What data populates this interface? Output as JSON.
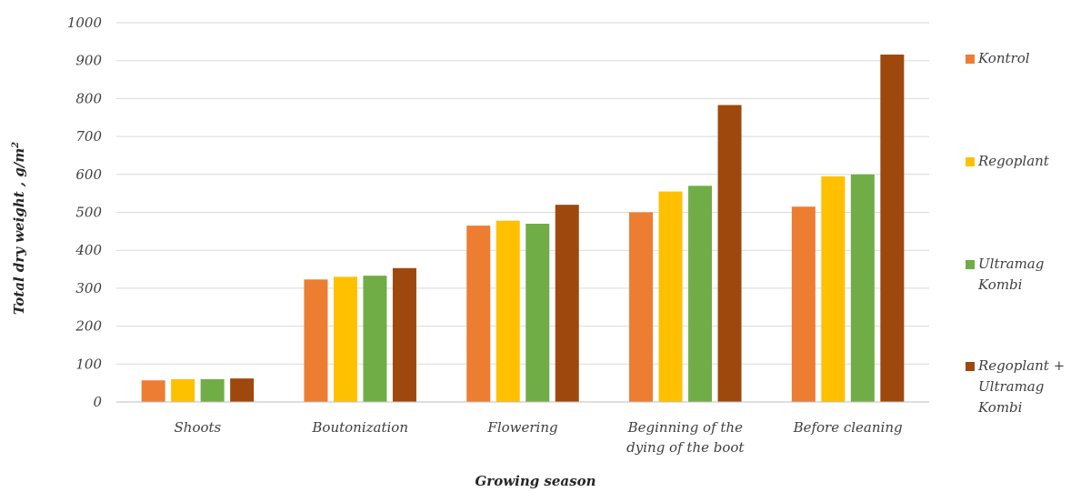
{
  "chart_data": {
    "type": "bar",
    "title": "",
    "xlabel": "Growing season",
    "ylabel": "Total dry weight , g/m",
    "ylabel_sup": "2",
    "ylim": [
      0,
      1000
    ],
    "yticks": [
      0,
      100,
      200,
      300,
      400,
      500,
      600,
      700,
      800,
      900,
      1000
    ],
    "grid": true,
    "legend_position": "right",
    "categories": [
      [
        "Shoots"
      ],
      [
        "Boutonization"
      ],
      [
        "Flowering"
      ],
      [
        "Beginning of the",
        "dying of the boot"
      ],
      [
        "Before cleaning"
      ]
    ],
    "series": [
      {
        "name": [
          "Kontrol"
        ],
        "color": "#ED7D31",
        "values": [
          57,
          323,
          465,
          500,
          515
        ]
      },
      {
        "name": [
          "Regoplant"
        ],
        "color": "#FFC000",
        "values": [
          60,
          330,
          478,
          555,
          595
        ]
      },
      {
        "name": [
          "Ultramag",
          "Kombi"
        ],
        "color": "#70AD47",
        "values": [
          60,
          333,
          470,
          570,
          600
        ]
      },
      {
        "name": [
          "Regoplant +",
          "Ultramag",
          "Kombi"
        ],
        "color": "#9E480E",
        "values": [
          62,
          353,
          520,
          783,
          916
        ]
      }
    ]
  }
}
